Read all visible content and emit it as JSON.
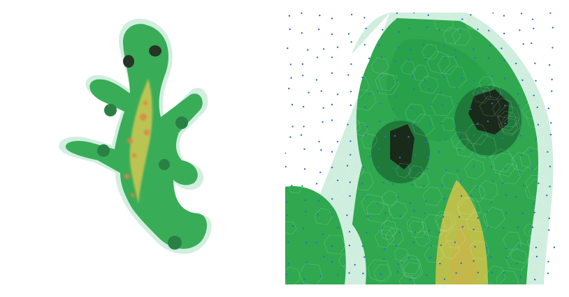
{
  "image": {
    "subject": "gecko",
    "style": "voronoi-mosaic",
    "palette": {
      "background": "#ffffff",
      "green_dark": "#1f7a3a",
      "green_mid": "#2fa84f",
      "green_light": "#6fcf8a",
      "green_pale": "#cfeede",
      "yellow": "#b8c04a",
      "orange": "#e07a3a",
      "eye": "#1a2a1a",
      "seed_dot": "#2a6fd0"
    },
    "panels": [
      {
        "role": "full-view"
      },
      {
        "role": "zoomed-head-with-seed-points"
      }
    ]
  }
}
